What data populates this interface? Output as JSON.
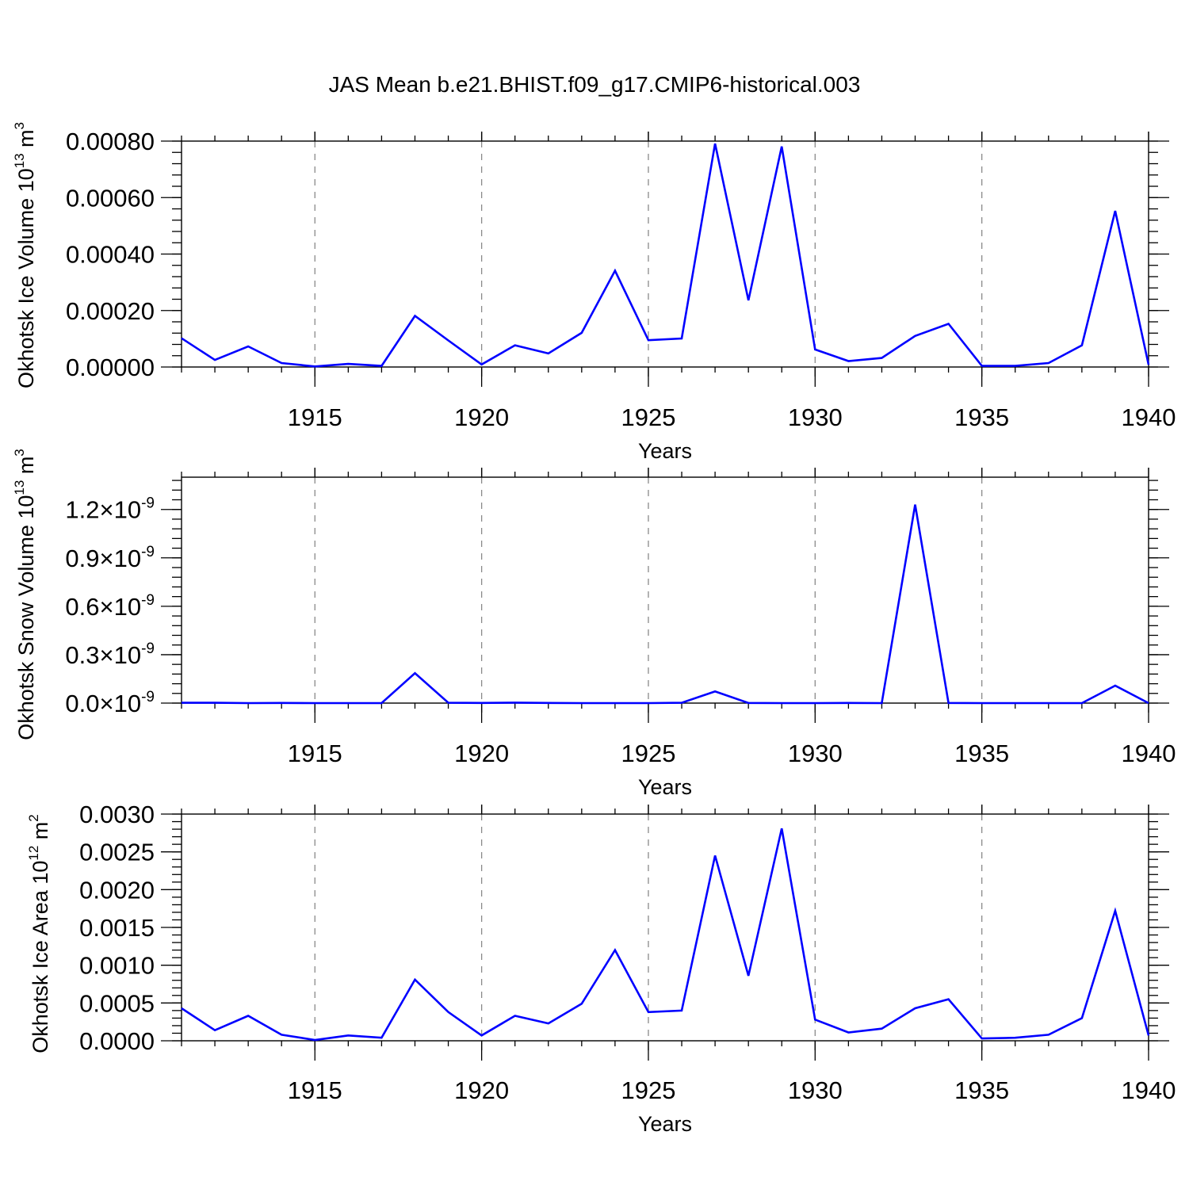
{
  "title": "JAS Mean b.e21.BHIST.f09_g17.CMIP6-historical.003",
  "colors": {
    "line": "#0000ff",
    "grid": "#8a8a8a",
    "axis": "#000000"
  },
  "chart_data": [
    {
      "type": "line",
      "name": "ice-volume",
      "ylabel": "Okhotsk Ice Volume 10",
      "ylabel_exp": "13",
      "ylabel_unit": "m",
      "ylabel_unit_exp": "3",
      "xlabel": "Years",
      "xlim": [
        1911,
        1940
      ],
      "ylim": [
        0,
        0.0008
      ],
      "yticks": [
        0,
        0.0002,
        0.0004,
        0.0006,
        0.0008
      ],
      "ytick_labels": [
        "0.00000",
        "0.00020",
        "0.00040",
        "0.00060",
        "0.00080"
      ],
      "xticks": [
        1915,
        1920,
        1925,
        1930,
        1935,
        1940
      ],
      "xtick_labels": [
        "1915",
        "1920",
        "1925",
        "1930",
        "1935",
        "1940"
      ],
      "grid_x": true,
      "x": [
        1911,
        1912,
        1913,
        1914,
        1915,
        1916,
        1917,
        1918,
        1919,
        1920,
        1921,
        1922,
        1923,
        1924,
        1925,
        1926,
        1927,
        1928,
        1929,
        1930,
        1931,
        1932,
        1933,
        1934,
        1935,
        1936,
        1937,
        1938,
        1939,
        1940
      ],
      "values": [
        0.000102,
        2.5e-05,
        7.3e-05,
        1.4e-05,
        2e-06,
        1.1e-05,
        4e-06,
        0.000181,
        9.4e-05,
        9e-06,
        7.7e-05,
        4.8e-05,
        0.000121,
        0.000341,
        9.5e-05,
        0.000101,
        0.000791,
        0.000236,
        0.000781,
        6.2e-05,
        2.1e-05,
        3.2e-05,
        0.00011,
        0.000153,
        4e-06,
        4e-06,
        1.4e-05,
        7.7e-05,
        0.000553,
        8e-06
      ]
    },
    {
      "type": "line",
      "name": "snow-volume",
      "ylabel": "Okhotsk Snow Volume 10",
      "ylabel_exp": "13",
      "ylabel_unit": "m",
      "ylabel_unit_exp": "3",
      "xlabel": "Years",
      "xlim": [
        1911,
        1940
      ],
      "ylim": [
        0,
        1.4e-09
      ],
      "yticks": [
        0,
        3e-10,
        6e-10,
        9e-10,
        1.2e-09
      ],
      "ytick_labels": [
        "0.0×10",
        "0.3×10",
        "0.6×10",
        "0.9×10",
        "1.2×10"
      ],
      "ytick_exp": "-9",
      "xticks": [
        1915,
        1920,
        1925,
        1930,
        1935,
        1940
      ],
      "xtick_labels": [
        "1915",
        "1920",
        "1925",
        "1930",
        "1935",
        "1940"
      ],
      "grid_x": true,
      "x": [
        1911,
        1912,
        1913,
        1914,
        1915,
        1916,
        1917,
        1918,
        1919,
        1920,
        1921,
        1922,
        1923,
        1924,
        1925,
        1926,
        1927,
        1928,
        1929,
        1930,
        1931,
        1932,
        1933,
        1934,
        1935,
        1936,
        1937,
        1938,
        1939,
        1940
      ],
      "values": [
        2e-12,
        2e-12,
        0,
        1e-12,
        0,
        0,
        0,
        1.85e-10,
        2e-12,
        1e-12,
        3e-12,
        1e-12,
        0,
        0,
        0,
        2e-12,
        7.2e-11,
        1e-12,
        0,
        0,
        1e-12,
        0,
        1.23e-09,
        1e-12,
        0,
        0,
        0,
        0,
        1.08e-10,
        0
      ]
    },
    {
      "type": "line",
      "name": "ice-area",
      "ylabel": "Okhotsk Ice Area 10",
      "ylabel_exp": "12",
      "ylabel_unit": "m",
      "ylabel_unit_exp": "2",
      "xlabel": "Years",
      "xlim": [
        1911,
        1940
      ],
      "ylim": [
        0,
        0.003
      ],
      "yticks": [
        0,
        0.0005,
        0.001,
        0.0015,
        0.002,
        0.0025,
        0.003
      ],
      "ytick_labels": [
        "0.0000",
        "0.0005",
        "0.0010",
        "0.0015",
        "0.0020",
        "0.0025",
        "0.0030"
      ],
      "xticks": [
        1915,
        1920,
        1925,
        1930,
        1935,
        1940
      ],
      "xtick_labels": [
        "1915",
        "1920",
        "1925",
        "1930",
        "1935",
        "1940"
      ],
      "grid_x": true,
      "x": [
        1911,
        1912,
        1913,
        1914,
        1915,
        1916,
        1917,
        1918,
        1919,
        1920,
        1921,
        1922,
        1923,
        1924,
        1925,
        1926,
        1927,
        1928,
        1929,
        1930,
        1931,
        1932,
        1933,
        1934,
        1935,
        1936,
        1937,
        1938,
        1939,
        1940
      ],
      "values": [
        0.00043,
        0.00014,
        0.00033,
        8e-05,
        1e-05,
        7e-05,
        4e-05,
        0.00081,
        0.00038,
        7e-05,
        0.00033,
        0.00023,
        0.00049,
        0.0012,
        0.00038,
        0.0004,
        0.00245,
        0.00086,
        0.00281,
        0.00028,
        0.00011,
        0.00016,
        0.00043,
        0.00055,
        3e-05,
        4e-05,
        8e-05,
        0.0003,
        0.00172,
        7e-05
      ]
    }
  ]
}
